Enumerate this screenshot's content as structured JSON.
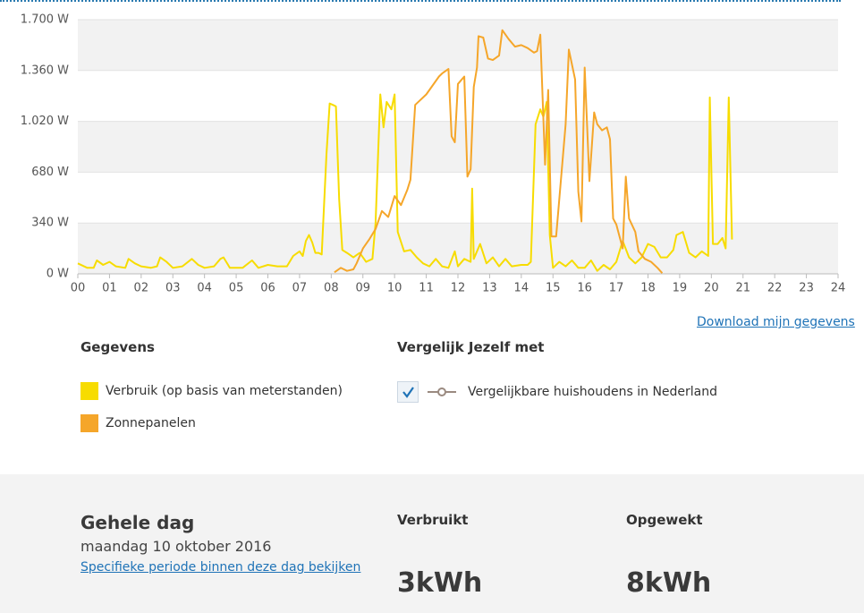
{
  "chart_data": {
    "type": "line",
    "xlim": [
      0,
      24
    ],
    "xticks": [
      {
        "value": 0,
        "label": "00"
      },
      {
        "value": 1,
        "label": "01"
      },
      {
        "value": 2,
        "label": "02"
      },
      {
        "value": 3,
        "label": "03"
      },
      {
        "value": 4,
        "label": "04"
      },
      {
        "value": 5,
        "label": "05"
      },
      {
        "value": 6,
        "label": "06"
      },
      {
        "value": 7,
        "label": "07"
      },
      {
        "value": 8,
        "label": "08"
      },
      {
        "value": 9,
        "label": "09"
      },
      10,
      11,
      12,
      13,
      14,
      15,
      16,
      17,
      18,
      19,
      20,
      21,
      22,
      23,
      24
    ],
    "ylim": [
      0,
      1700
    ],
    "yticks": [
      {
        "value": 0,
        "label": "0 W"
      },
      {
        "value": 340,
        "label": "340 W"
      },
      {
        "value": 680,
        "label": "680 W"
      },
      {
        "value": 1020,
        "label": "1.020 W"
      },
      {
        "value": 1360,
        "label": "1.360 W"
      },
      {
        "value": 1700,
        "label": "1.700 W"
      }
    ],
    "grid": true,
    "series": [
      {
        "name": "Verbruik (op basis van meterstanden)",
        "color": "#f7dc00",
        "x": [
          0.0,
          0.3,
          0.5,
          0.6,
          0.8,
          1.0,
          1.2,
          1.5,
          1.6,
          1.8,
          2.0,
          2.3,
          2.5,
          2.6,
          2.8,
          3.0,
          3.3,
          3.6,
          3.8,
          4.0,
          4.3,
          4.5,
          4.6,
          4.8,
          5.2,
          5.5,
          5.7,
          6.0,
          6.3,
          6.6,
          6.8,
          7.0,
          7.1,
          7.2,
          7.3,
          7.4,
          7.5,
          7.6,
          7.7,
          7.85,
          7.95,
          8.05,
          8.15,
          8.25,
          8.35,
          8.5,
          8.7,
          8.9,
          9.1,
          9.3,
          9.4,
          9.55,
          9.65,
          9.75,
          9.9,
          10.0,
          10.1,
          10.3,
          10.5,
          10.7,
          10.9,
          11.1,
          11.3,
          11.5,
          11.7,
          11.9,
          12.0,
          12.2,
          12.4,
          12.45,
          12.5,
          12.7,
          12.9,
          13.1,
          13.3,
          13.5,
          13.7,
          14.0,
          14.2,
          14.3,
          14.45,
          14.6,
          14.7,
          14.8,
          14.9,
          15.0,
          15.2,
          15.4,
          15.6,
          15.8,
          16.0,
          16.2,
          16.4,
          16.6,
          16.8,
          17.0,
          17.2,
          17.4,
          17.6,
          17.8,
          18.0,
          18.2,
          18.4,
          18.6,
          18.8,
          18.9,
          19.1,
          19.3,
          19.5,
          19.7,
          19.9,
          19.95,
          20.05,
          20.2,
          20.35,
          20.45,
          20.55,
          20.65
        ],
        "values": [
          70,
          40,
          40,
          90,
          60,
          80,
          50,
          40,
          100,
          70,
          50,
          40,
          50,
          110,
          80,
          40,
          50,
          100,
          60,
          40,
          50,
          100,
          110,
          40,
          40,
          90,
          40,
          60,
          50,
          50,
          120,
          150,
          120,
          220,
          260,
          210,
          140,
          140,
          130,
          800,
          1140,
          1130,
          1120,
          500,
          160,
          140,
          110,
          140,
          80,
          100,
          340,
          1200,
          980,
          1150,
          1100,
          1200,
          280,
          150,
          160,
          110,
          70,
          50,
          100,
          50,
          40,
          150,
          50,
          100,
          80,
          570,
          100,
          200,
          70,
          110,
          50,
          100,
          50,
          60,
          60,
          80,
          1000,
          1100,
          1050,
          1150,
          260,
          40,
          80,
          50,
          90,
          40,
          40,
          90,
          20,
          60,
          30,
          80,
          220,
          110,
          70,
          110,
          200,
          180,
          110,
          110,
          160,
          260,
          280,
          140,
          110,
          150,
          120,
          1180,
          200,
          200,
          240,
          170,
          1180,
          230
        ]
      },
      {
        "name": "Zonnepanelen",
        "color": "#f5a62a",
        "x": [
          8.1,
          8.3,
          8.5,
          8.7,
          8.8,
          9.0,
          9.2,
          9.4,
          9.6,
          9.8,
          10.0,
          10.2,
          10.4,
          10.5,
          10.65,
          10.8,
          11.0,
          11.2,
          11.4,
          11.5,
          11.7,
          11.8,
          11.9,
          12.0,
          12.2,
          12.3,
          12.4,
          12.5,
          12.6,
          12.65,
          12.8,
          12.95,
          13.1,
          13.3,
          13.4,
          13.6,
          13.8,
          14.0,
          14.2,
          14.4,
          14.5,
          14.6,
          14.75,
          14.85,
          14.95,
          15.1,
          15.4,
          15.5,
          15.7,
          15.8,
          15.9,
          16.0,
          16.15,
          16.3,
          16.4,
          16.55,
          16.7,
          16.8,
          16.9,
          17.0,
          17.2,
          17.3,
          17.4,
          17.6,
          17.7,
          17.9,
          18.1,
          18.3,
          18.45
        ],
        "values": [
          10,
          40,
          20,
          30,
          70,
          170,
          230,
          300,
          420,
          380,
          520,
          460,
          560,
          630,
          1130,
          1160,
          1200,
          1260,
          1320,
          1340,
          1370,
          920,
          880,
          1270,
          1320,
          650,
          700,
          1250,
          1380,
          1590,
          1580,
          1440,
          1430,
          1460,
          1630,
          1570,
          1520,
          1530,
          1510,
          1480,
          1490,
          1600,
          730,
          1230,
          250,
          250,
          1000,
          1500,
          1300,
          550,
          350,
          1380,
          620,
          1080,
          1000,
          960,
          980,
          900,
          370,
          330,
          170,
          650,
          370,
          280,
          150,
          100,
          80,
          40,
          5
        ]
      }
    ]
  },
  "links": {
    "download": "Download mijn gegevens"
  },
  "legend_section": {
    "heading": "Gegevens"
  },
  "compare_section": {
    "heading": "Vergelijk Jezelf met",
    "option": "Vergelijkbare huishoudens in Nederland"
  },
  "summary": {
    "title": "Gehele dag",
    "date": "maandag 10 oktober 2016",
    "link": "Specifieke periode binnen deze dag bekijken",
    "used_label": "Verbruikt",
    "used_value": "3kWh",
    "produced_label": "Opgewekt",
    "produced_value": "8kWh"
  }
}
